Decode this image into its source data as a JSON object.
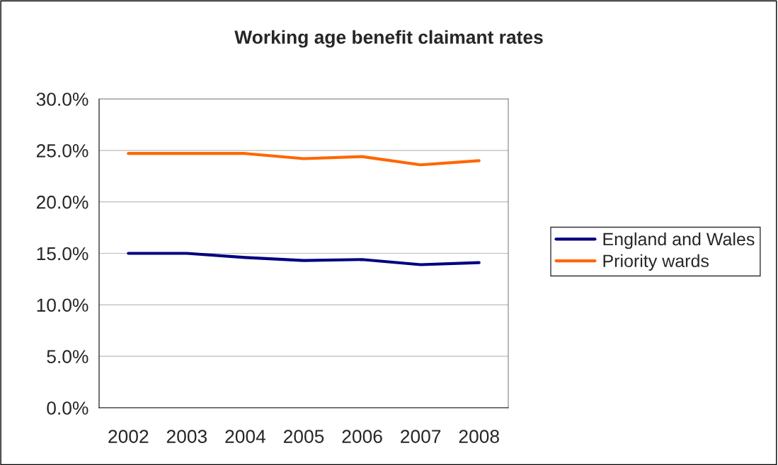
{
  "chart_data": {
    "type": "line",
    "title": "Working age benefit claimant rates",
    "categories": [
      "2002",
      "2003",
      "2004",
      "2005",
      "2006",
      "2007",
      "2008"
    ],
    "series": [
      {
        "name": "England and Wales",
        "color": "#000080",
        "values": [
          15.0,
          15.0,
          14.6,
          14.3,
          14.4,
          13.9,
          14.1
        ]
      },
      {
        "name": "Priority wards",
        "color": "#ff6600",
        "values": [
          24.7,
          24.7,
          24.7,
          24.2,
          24.4,
          23.6,
          24.0
        ]
      }
    ],
    "ylim": [
      0,
      30
    ],
    "yticks": [
      {
        "value": 0,
        "label": "0.0%"
      },
      {
        "value": 5,
        "label": "5.0%"
      },
      {
        "value": 10,
        "label": "10.0%"
      },
      {
        "value": 15,
        "label": "15.0%"
      },
      {
        "value": 20,
        "label": "20.0%"
      },
      {
        "value": 25,
        "label": "25.0%"
      },
      {
        "value": 30,
        "label": "30.0%"
      }
    ],
    "grid": "y",
    "legend": "right",
    "marker": "none",
    "line_style": "solid"
  }
}
